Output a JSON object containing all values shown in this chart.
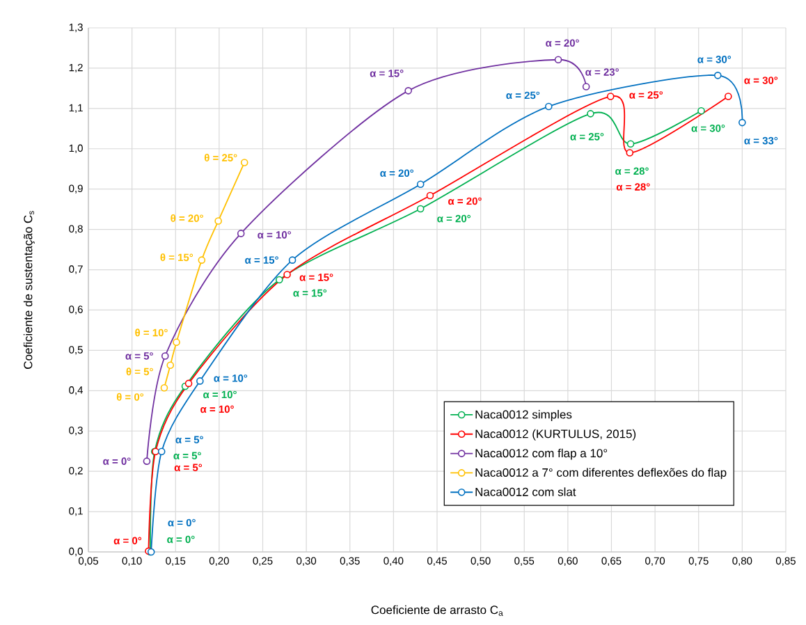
{
  "chart_data": {
    "type": "line",
    "xlabel": "Coeficiente de arrasto C$_{a}$",
    "ylabel": "Coeficiente de sustentação C$_{s}$",
    "xlim": [
      0.05,
      0.85
    ],
    "ylim": [
      0.0,
      1.3
    ],
    "xticks": [
      {
        "value": 0.05,
        "label": "0,05"
      },
      {
        "value": 0.1,
        "label": "0,10"
      },
      {
        "value": 0.15,
        "label": "0,15"
      },
      {
        "value": 0.2,
        "label": "0,20"
      },
      {
        "value": 0.25,
        "label": "0,25"
      },
      {
        "value": 0.3,
        "label": "0,30"
      },
      {
        "value": 0.35,
        "label": "0,35"
      },
      {
        "value": 0.4,
        "label": "0,40"
      },
      {
        "value": 0.45,
        "label": "0,45"
      },
      {
        "value": 0.5,
        "label": "0,50"
      },
      {
        "value": 0.55,
        "label": "0,55"
      },
      {
        "value": 0.6,
        "label": "0,60"
      },
      {
        "value": 0.65,
        "label": "0,65"
      },
      {
        "value": 0.7,
        "label": "0,70"
      },
      {
        "value": 0.75,
        "label": "0,75"
      },
      {
        "value": 0.8,
        "label": "0,80"
      },
      {
        "value": 0.85,
        "label": "0,85"
      }
    ],
    "yticks": [
      {
        "value": 0.0,
        "label": "0,0"
      },
      {
        "value": 0.1,
        "label": "0,1"
      },
      {
        "value": 0.2,
        "label": "0,2"
      },
      {
        "value": 0.3,
        "label": "0,3"
      },
      {
        "value": 0.4,
        "label": "0,4"
      },
      {
        "value": 0.5,
        "label": "0,5"
      },
      {
        "value": 0.6,
        "label": "0,6"
      },
      {
        "value": 0.7,
        "label": "0,7"
      },
      {
        "value": 0.8,
        "label": "0,8"
      },
      {
        "value": 0.9,
        "label": "0,9"
      },
      {
        "value": 1.0,
        "label": "1,0"
      },
      {
        "value": 1.1,
        "label": "1,1"
      },
      {
        "value": 1.2,
        "label": "1,2"
      },
      {
        "value": 1.3,
        "label": "1,3"
      }
    ],
    "grid": true,
    "legend": "bottom right",
    "marker": "circle",
    "line_style": "solid",
    "series": [
      {
        "name": "Naca0012 simples",
        "color": "#00b050",
        "x": [
          0.121,
          0.126,
          0.161,
          0.269,
          0.431,
          0.626,
          0.672,
          0.753
        ],
        "values": [
          0.0,
          0.249,
          0.411,
          0.675,
          0.851,
          1.087,
          1.012,
          1.094
        ]
      },
      {
        "name": "Naca0012 (KURTULUS, 2015)",
        "color": "#ff0000",
        "x": [
          0.119,
          0.127,
          0.165,
          0.278,
          0.442,
          0.649,
          0.671,
          0.784
        ],
        "values": [
          0.002,
          0.249,
          0.418,
          0.688,
          0.884,
          1.13,
          0.99,
          1.13
        ]
      },
      {
        "name": "Naca0012 com flap a 10°",
        "color": "#7030a0",
        "x": [
          0.117,
          0.138,
          0.225,
          0.417,
          0.589,
          0.621
        ],
        "values": [
          0.225,
          0.486,
          0.79,
          1.144,
          1.221,
          1.154
        ]
      },
      {
        "name": "Naca0012 a 7° com diferentes deflexões do flap",
        "color": "#ffc000",
        "x": [
          0.137,
          0.144,
          0.151,
          0.18,
          0.199,
          0.229
        ],
        "values": [
          0.407,
          0.463,
          0.52,
          0.724,
          0.821,
          0.966
        ]
      },
      {
        "name": "Naca0012 com slat",
        "color": "#0070c0",
        "x": [
          0.122,
          0.134,
          0.178,
          0.284,
          0.431,
          0.578,
          0.772,
          0.8
        ],
        "values": [
          0.0,
          0.249,
          0.424,
          0.724,
          0.912,
          1.105,
          1.182,
          1.065
        ]
      }
    ],
    "annotations": [
      {
        "text": "α = 0°",
        "x": 0.121,
        "y": 0.0
      },
      {
        "text": "α = 5°",
        "x": 0.126,
        "y": 0.249
      },
      {
        "text": "α = 10°",
        "x": 0.161,
        "y": 0.411
      },
      {
        "text": "α = 15°",
        "x": 0.269,
        "y": 0.675
      },
      {
        "text": "α = 20°",
        "x": 0.431,
        "y": 0.851
      },
      {
        "text": "α = 25°",
        "x": 0.626,
        "y": 1.087
      },
      {
        "text": "α = 28°",
        "x": 0.672,
        "y": 1.012
      },
      {
        "text": "α = 30°",
        "x": 0.753,
        "y": 1.094
      },
      {
        "text": "α = 0°",
        "x": 0.119,
        "y": 0.002
      },
      {
        "text": "α = 5°",
        "x": 0.127,
        "y": 0.249
      },
      {
        "text": "α = 10°",
        "x": 0.165,
        "y": 0.418
      },
      {
        "text": "α = 15°",
        "x": 0.278,
        "y": 0.688
      },
      {
        "text": "α = 20°",
        "x": 0.442,
        "y": 0.884
      },
      {
        "text": "α = 25°",
        "x": 0.649,
        "y": 1.13
      },
      {
        "text": "α = 28°",
        "x": 0.671,
        "y": 0.99
      },
      {
        "text": "α = 30°",
        "x": 0.784,
        "y": 1.13
      },
      {
        "text": "α = 0°",
        "x": 0.117,
        "y": 0.225
      },
      {
        "text": "α = 5°",
        "x": 0.138,
        "y": 0.486
      },
      {
        "text": "α = 10°",
        "x": 0.225,
        "y": 0.79
      },
      {
        "text": "α = 15°",
        "x": 0.417,
        "y": 1.144
      },
      {
        "text": "α = 20°",
        "x": 0.589,
        "y": 1.221
      },
      {
        "text": "α = 23°",
        "x": 0.621,
        "y": 1.154
      },
      {
        "text": "θ = 0°",
        "x": 0.137,
        "y": 0.407
      },
      {
        "text": "θ = 5°",
        "x": 0.144,
        "y": 0.463
      },
      {
        "text": "θ = 10°",
        "x": 0.151,
        "y": 0.52
      },
      {
        "text": "θ = 15°",
        "x": 0.18,
        "y": 0.724
      },
      {
        "text": "θ = 20°",
        "x": 0.199,
        "y": 0.821
      },
      {
        "text": "θ = 25°",
        "x": 0.229,
        "y": 0.966
      },
      {
        "text": "α = 0°",
        "x": 0.122,
        "y": 0.0
      },
      {
        "text": "α = 5°",
        "x": 0.134,
        "y": 0.249
      },
      {
        "text": "α = 10°",
        "x": 0.178,
        "y": 0.424
      },
      {
        "text": "α = 15°",
        "x": 0.284,
        "y": 0.724
      },
      {
        "text": "α = 20°",
        "x": 0.431,
        "y": 0.912
      },
      {
        "text": "α = 25°",
        "x": 0.578,
        "y": 1.105
      },
      {
        "text": "α = 30°",
        "x": 0.772,
        "y": 1.182
      },
      {
        "text": "α = 33°",
        "x": 0.8,
        "y": 1.065
      }
    ]
  }
}
